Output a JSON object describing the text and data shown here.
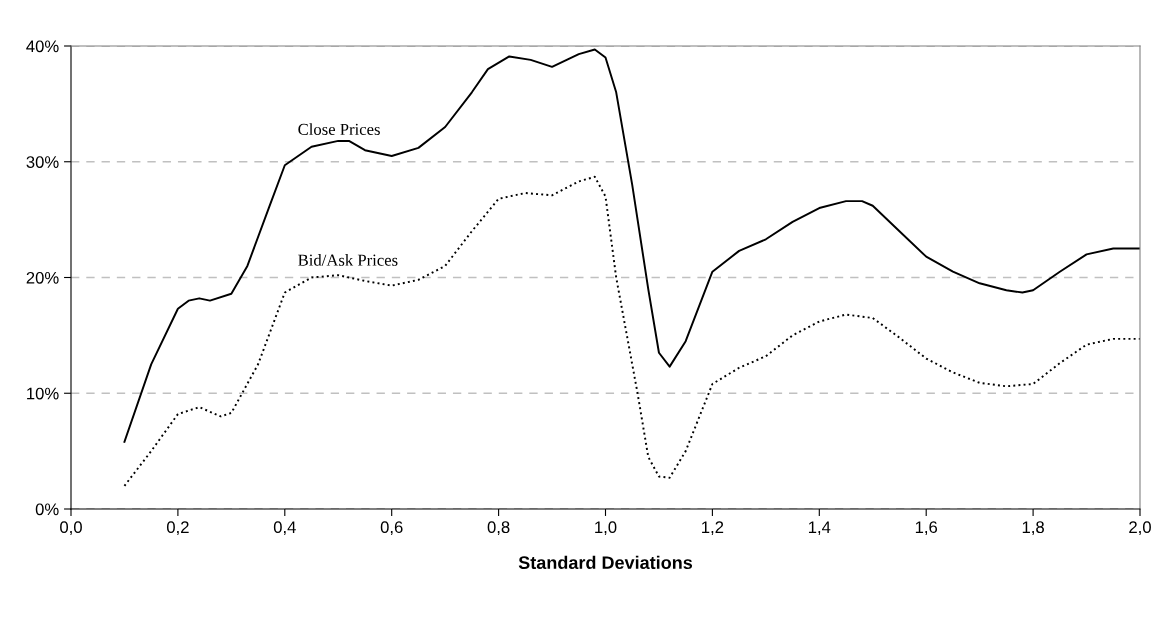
{
  "chart_data": {
    "type": "line",
    "xlabel": "Standard Deviations",
    "xlim": [
      0,
      2
    ],
    "xticks": [
      {
        "value": 0,
        "label": "0,0"
      },
      {
        "value": 0.2,
        "label": "0,2"
      },
      {
        "value": 0.4,
        "label": "0,4"
      },
      {
        "value": 0.6,
        "label": "0,6"
      },
      {
        "value": 0.8,
        "label": "0,8"
      },
      {
        "value": 1.0,
        "label": "1,0"
      },
      {
        "value": 1.2,
        "label": "1,2"
      },
      {
        "value": 1.4,
        "label": "1,4"
      },
      {
        "value": 1.6,
        "label": "1,6"
      },
      {
        "value": 1.8,
        "label": "1,8"
      },
      {
        "value": 2.0,
        "label": "2,0"
      }
    ],
    "ylim": [
      0,
      40
    ],
    "yticks": [
      {
        "value": 0,
        "label": "0%"
      },
      {
        "value": 10,
        "label": "10%"
      },
      {
        "value": 20,
        "label": "20%"
      },
      {
        "value": 30,
        "label": "30%"
      },
      {
        "value": 40,
        "label": "40%"
      }
    ],
    "grid": "y",
    "legend": false,
    "marker": "none",
    "series": [
      {
        "name": "Close Prices",
        "color": "#000000",
        "line_style": "solid",
        "x": [
          0.1,
          0.15,
          0.2,
          0.22,
          0.24,
          0.26,
          0.3,
          0.33,
          0.37,
          0.4,
          0.45,
          0.5,
          0.52,
          0.55,
          0.6,
          0.65,
          0.7,
          0.75,
          0.78,
          0.82,
          0.86,
          0.9,
          0.95,
          0.98,
          1.0,
          1.02,
          1.05,
          1.08,
          1.1,
          1.12,
          1.15,
          1.2,
          1.25,
          1.3,
          1.35,
          1.4,
          1.45,
          1.48,
          1.5,
          1.55,
          1.6,
          1.65,
          1.7,
          1.75,
          1.78,
          1.8,
          1.85,
          1.9,
          1.95,
          2.0
        ],
        "values": [
          5.8,
          12.5,
          17.3,
          18,
          18.2,
          18,
          18.6,
          21,
          26,
          29.7,
          31.3,
          31.8,
          31.8,
          31,
          30.5,
          31.2,
          33,
          36,
          38,
          39.1,
          38.8,
          38.2,
          39.3,
          39.7,
          39,
          36,
          28,
          19,
          13.5,
          12.3,
          14.5,
          20.5,
          22.3,
          23.3,
          24.8,
          26,
          26.6,
          26.6,
          26.2,
          24,
          21.8,
          20.5,
          19.5,
          18.9,
          18.7,
          18.9,
          20.5,
          22,
          22.5,
          22.5
        ]
      },
      {
        "name": "Bid/Ask Prices",
        "color": "#000000",
        "line_style": "dotted",
        "x": [
          0.1,
          0.15,
          0.2,
          0.24,
          0.28,
          0.3,
          0.35,
          0.4,
          0.45,
          0.5,
          0.55,
          0.6,
          0.65,
          0.7,
          0.75,
          0.8,
          0.85,
          0.9,
          0.95,
          0.98,
          1.0,
          1.02,
          1.04,
          1.06,
          1.08,
          1.1,
          1.12,
          1.15,
          1.2,
          1.25,
          1.3,
          1.35,
          1.4,
          1.45,
          1.5,
          1.55,
          1.6,
          1.65,
          1.7,
          1.75,
          1.8,
          1.85,
          1.9,
          1.95,
          2.0
        ],
        "values": [
          2,
          5,
          8.2,
          8.8,
          8,
          8.3,
          12.5,
          18.7,
          20,
          20.2,
          19.7,
          19.3,
          19.8,
          21,
          24,
          26.8,
          27.3,
          27.1,
          28.3,
          28.7,
          27,
          20,
          15,
          10,
          4.5,
          2.8,
          2.7,
          5,
          10.8,
          12.2,
          13.2,
          15,
          16.2,
          16.8,
          16.5,
          14.8,
          13,
          11.8,
          10.9,
          10.6,
          10.8,
          12.6,
          14.2,
          14.7,
          14.7
        ]
      }
    ]
  }
}
